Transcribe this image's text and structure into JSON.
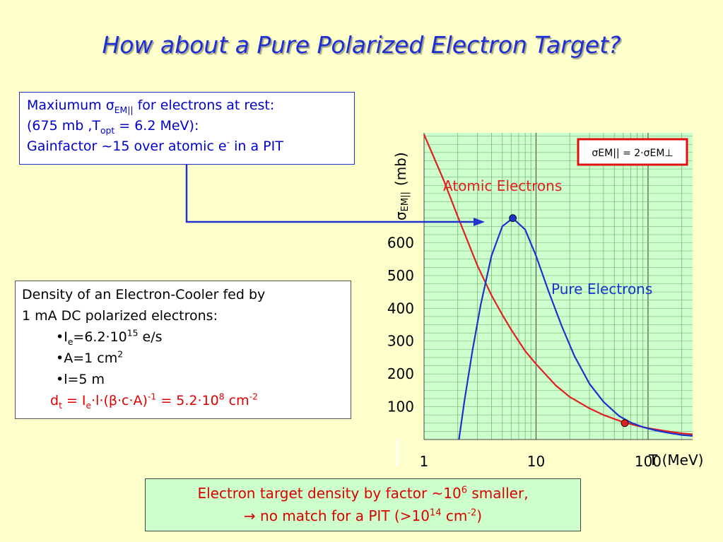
{
  "title": "How about a Pure Polarized Electron Target?",
  "rest_box": {
    "l1_a": "Maxiumum σ",
    "l1_sub": "EM||",
    "l1_b": " for electrons at rest:",
    "l2_a": "(675 mb ,T",
    "l2_sub": "opt",
    "l2_b": " = 6.2 MeV):",
    "l3_a": "Gainfactor ~15 over atomic e",
    "l3_sup": "-",
    "l3_b": " in a PIT"
  },
  "density_box": {
    "l1": "Density of an Electron-Cooler fed by",
    "l2": "1 mA DC polarized electrons:",
    "ie_a": "•I",
    "ie_sub": "e",
    "ie_b": "=6.2·10",
    "ie_sup": "15",
    "ie_c": " e/s",
    "a_a": "•A=1 cm",
    "a_sup": "2",
    "l_line": "•l=5 m",
    "dt_a": "d",
    "dt_sub1": "t",
    "dt_b": " = I",
    "dt_sub2": "e",
    "dt_c": "·l·(β·c·A)",
    "dt_sup1": "-1",
    "dt_d": " = 5.2·10",
    "dt_sup2": "8",
    "dt_e": " cm",
    "dt_sup3": "-2"
  },
  "bottom_box": {
    "l1_a": "Electron target density by factor ~10",
    "l1_sup": "6",
    "l1_b": " smaller,",
    "l2_a": "→ no match for a  PIT (>10",
    "l2_sup1": "14",
    "l2_b": " cm",
    "l2_sup2": "-2",
    "l2_c": ")"
  },
  "chart_data": {
    "type": "line",
    "xscale": "log",
    "xlim": [
      1,
      250
    ],
    "ylim": [
      0,
      935
    ],
    "xlabel": "T (MeV)",
    "ylabel_main": "σ",
    "ylabel_sub": "EM||",
    "ylabel_unit": "(mb)",
    "x_ticks": [
      1,
      10,
      100
    ],
    "y_ticks": [
      100,
      200,
      300,
      400,
      500,
      600
    ],
    "formula": "σEM|| = 2·σEM⊥",
    "series": [
      {
        "name": "Atomic Electrons",
        "color": "#e02020",
        "x": [
          1.0,
          1.5,
          2.0,
          3.0,
          4.0,
          5.0,
          6.0,
          8.0,
          10.0,
          15.0,
          20.0,
          30.0,
          40.0,
          60.0,
          80.0,
          100.0,
          150.0,
          200.0,
          250.0
        ],
        "y": [
          930,
          790,
          680,
          530,
          440,
          380,
          335,
          270,
          230,
          165,
          130,
          95,
          75,
          53,
          42,
          35,
          25,
          19,
          16
        ]
      },
      {
        "name": "Pure Electrons",
        "color": "#1a33cc",
        "x": [
          2.05,
          2.3,
          2.7,
          3.2,
          4.0,
          5.0,
          6.2,
          8.0,
          10.0,
          13.0,
          17.0,
          22.0,
          30.0,
          40.0,
          55.0,
          70.0,
          90.0,
          120.0,
          160.0,
          200.0,
          250.0
        ],
        "y": [
          0,
          120,
          270,
          410,
          560,
          650,
          675,
          640,
          560,
          450,
          345,
          255,
          170,
          115,
          72,
          52,
          38,
          27,
          19,
          14,
          11
        ]
      }
    ],
    "markers": [
      {
        "x": 6.2,
        "y": 675,
        "color": "#1a33cc"
      },
      {
        "x": 62,
        "y": 50,
        "color": "#e02020"
      }
    ]
  }
}
